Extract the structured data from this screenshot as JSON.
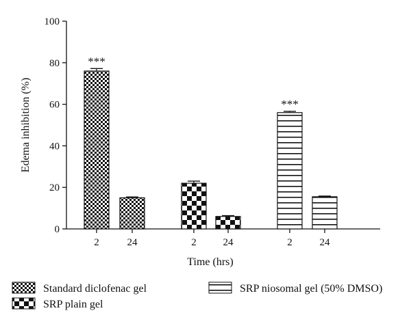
{
  "chart_data": {
    "type": "bar",
    "xlabel": "Time (hrs)",
    "ylabel": "Edema inhibition (%)",
    "ylim": [
      0,
      100
    ],
    "yticks": [
      "0",
      "20",
      "40",
      "60",
      "80",
      "100"
    ],
    "groups": [
      {
        "series": "Standard diclofenac gel",
        "pattern": "checker-small",
        "bars": [
          {
            "x": "2",
            "value": 76,
            "error": 1.2,
            "annotation": "***"
          },
          {
            "x": "24",
            "value": 15,
            "error": 0.4,
            "annotation": ""
          }
        ]
      },
      {
        "series": "SRP plain gel",
        "pattern": "checker-large",
        "bars": [
          {
            "x": "2",
            "value": 22,
            "error": 1.0,
            "annotation": ""
          },
          {
            "x": "24",
            "value": 6,
            "error": 0.4,
            "annotation": ""
          }
        ]
      },
      {
        "series": "SRP niosomal gel (50% DMSO)",
        "pattern": "horizontal-lines",
        "bars": [
          {
            "x": "2",
            "value": 56,
            "error": 0.6,
            "annotation": "***"
          },
          {
            "x": "24",
            "value": 15.5,
            "error": 0.3,
            "annotation": ""
          }
        ]
      }
    ],
    "legend": {
      "placement": "bottom",
      "entries": [
        "Standard diclofenac gel",
        "SRP plain gel",
        "SRP niosomal gel (50% DMSO)"
      ]
    },
    "grid": false,
    "colors": {
      "ink": "#111111",
      "background": "#ffffff"
    }
  }
}
